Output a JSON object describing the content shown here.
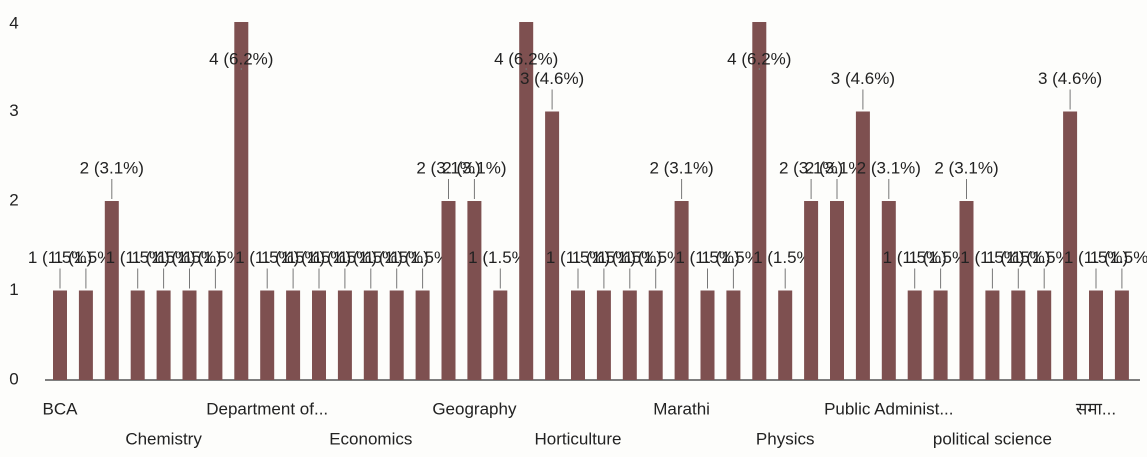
{
  "chart_data": {
    "type": "bar",
    "categories": [
      "BCA",
      null,
      null,
      null,
      "Chemistry",
      null,
      null,
      null,
      "Department of...",
      null,
      null,
      null,
      "Economics",
      null,
      null,
      null,
      "Geography",
      null,
      null,
      null,
      "Horticulture",
      null,
      null,
      null,
      "Marathi",
      null,
      null,
      null,
      "Physics",
      null,
      null,
      null,
      "Public Administ...",
      null,
      null,
      null,
      "political science",
      null,
      null,
      null,
      "समा...",
      null
    ],
    "values": [
      1,
      1,
      2,
      1,
      1,
      1,
      1,
      4,
      1,
      1,
      1,
      1,
      1,
      1,
      1,
      2,
      2,
      1,
      4,
      3,
      1,
      1,
      1,
      1,
      2,
      1,
      1,
      4,
      1,
      2,
      2,
      3,
      2,
      1,
      1,
      2,
      1,
      1,
      1,
      3,
      1,
      1
    ],
    "value_labels": [
      "1 (1.5%)",
      "1 (1.5%)",
      "2 (3.1%)",
      "1 (1.5%)",
      "1 (1.5%)",
      "1 (1.5%)",
      "1 (1.5%)",
      "4 (6.2%)",
      "1 (1.5%)",
      "1 (1.5%)",
      "1 (1.5%)",
      "1 (1.5%)",
      "1 (1.5%)",
      "1 (1.5%)",
      "1 (1.5%)",
      "2 (3.1%)",
      "2 (3.1%)",
      "1 (1.5%)",
      "4 (6.2%)",
      "3 (4.6%)",
      "1 (1.5%)",
      "1 (1.5%)",
      "1 (1.5%)",
      "1 (1.5%)",
      "2 (3.1%)",
      "1 (1.5%)",
      "1 (1.5%)",
      "4 (6.2%)",
      "1 (1.5%)",
      "2 (3.1%)",
      "2 (3.1%)",
      "3 (4.6%)",
      "2 (3.1%)",
      "1 (1.5%)",
      "1 (1.5%)",
      "2 (3.1%)",
      "1 (1.5%)",
      "1 (1.5%)",
      "1 (1.5%)",
      "3 (4.6%)",
      "1 (1.5%)",
      "1 (1.5%)"
    ],
    "color": "#7e5050",
    "ylim": [
      0,
      4
    ],
    "yticks": [
      0,
      1,
      2,
      3,
      4
    ]
  }
}
